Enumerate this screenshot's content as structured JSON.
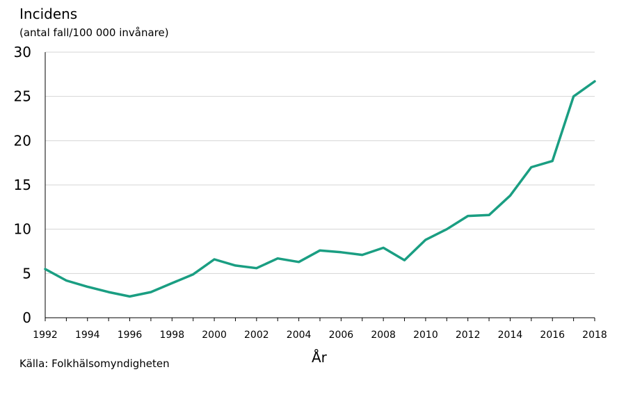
{
  "chart_data": {
    "type": "line",
    "ylabel": "Incidens",
    "ylabel_unit": "(antal fall/100 000 invånare)",
    "xlabel": "År",
    "source": "Källa: Folkhälsomyndigheten",
    "ylim": [
      0,
      30
    ],
    "yticks": [
      0,
      5,
      10,
      15,
      20,
      25,
      30
    ],
    "xlim": [
      1992,
      2018
    ],
    "xticks": [
      1992,
      1994,
      1996,
      1998,
      2000,
      2002,
      2004,
      2006,
      2008,
      2010,
      2012,
      2014,
      2016,
      2018
    ],
    "grid": "horizontal",
    "line_color": "#1a9e82",
    "x": [
      1992,
      1993,
      1994,
      1995,
      1996,
      1997,
      1998,
      1999,
      2000,
      2001,
      2002,
      2003,
      2004,
      2005,
      2006,
      2007,
      2008,
      2009,
      2010,
      2011,
      2012,
      2013,
      2014,
      2015,
      2016,
      2017,
      2018
    ],
    "values": [
      5.5,
      4.2,
      3.5,
      2.9,
      2.4,
      2.9,
      3.9,
      4.9,
      6.6,
      5.9,
      5.6,
      6.7,
      6.3,
      7.6,
      7.4,
      7.1,
      7.9,
      6.5,
      8.8,
      10.0,
      11.5,
      11.6,
      13.8,
      17.0,
      17.7,
      25.0,
      26.7
    ]
  }
}
